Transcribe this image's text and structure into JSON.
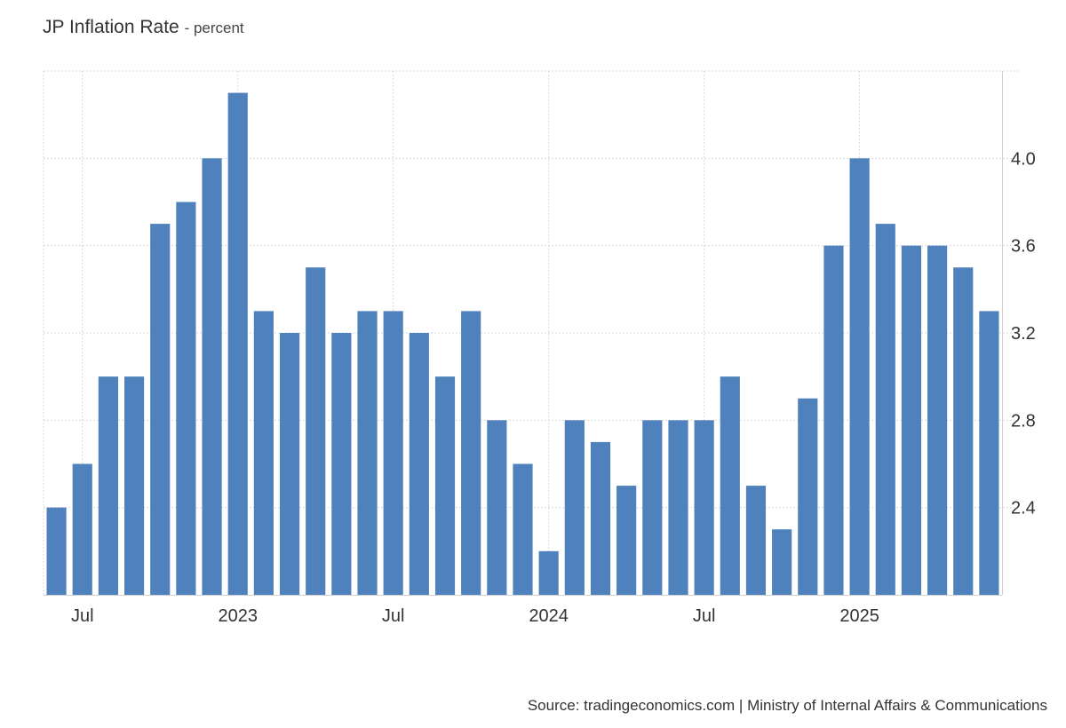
{
  "title": "JP Inflation Rate",
  "unit": "- percent",
  "source": "Source: tradingeconomics.com | Ministry of Internal Affairs & Communications",
  "chart_data": {
    "type": "bar",
    "bar_color": "#4f81bd",
    "grid": true,
    "y_axis_side": "right",
    "ylim": [
      2.0,
      4.4
    ],
    "yticks": [
      2.4,
      2.8,
      3.2,
      3.6,
      4.0
    ],
    "ytick_labels": [
      "2.4",
      "2.8",
      "3.2",
      "3.6",
      "4.0"
    ],
    "x": [
      "2022-06",
      "2022-07",
      "2022-08",
      "2022-09",
      "2022-10",
      "2022-11",
      "2022-12",
      "2023-01",
      "2023-02",
      "2023-03",
      "2023-04",
      "2023-05",
      "2023-06",
      "2023-07",
      "2023-08",
      "2023-09",
      "2023-10",
      "2023-11",
      "2023-12",
      "2024-01",
      "2024-02",
      "2024-03",
      "2024-04",
      "2024-05",
      "2024-06",
      "2024-07",
      "2024-08",
      "2024-09",
      "2024-10",
      "2024-11",
      "2024-12",
      "2025-01",
      "2025-02",
      "2025-03",
      "2025-04",
      "2025-05",
      "2025-06"
    ],
    "values": [
      2.4,
      2.6,
      3.0,
      3.0,
      3.7,
      3.8,
      4.0,
      4.3,
      3.3,
      3.2,
      3.5,
      3.2,
      3.3,
      3.3,
      3.2,
      3.0,
      3.3,
      2.8,
      2.6,
      2.2,
      2.8,
      2.7,
      2.5,
      2.8,
      2.8,
      2.8,
      3.0,
      2.5,
      2.3,
      2.9,
      3.6,
      4.0,
      3.7,
      3.6,
      3.6,
      3.5,
      3.3
    ],
    "xticks": [
      {
        "x": "2022-07",
        "label": "Jul"
      },
      {
        "x": "2023-01",
        "label": "2023"
      },
      {
        "x": "2023-07",
        "label": "Jul"
      },
      {
        "x": "2024-01",
        "label": "2024"
      },
      {
        "x": "2024-07",
        "label": "Jul"
      },
      {
        "x": "2025-01",
        "label": "2025"
      }
    ]
  }
}
